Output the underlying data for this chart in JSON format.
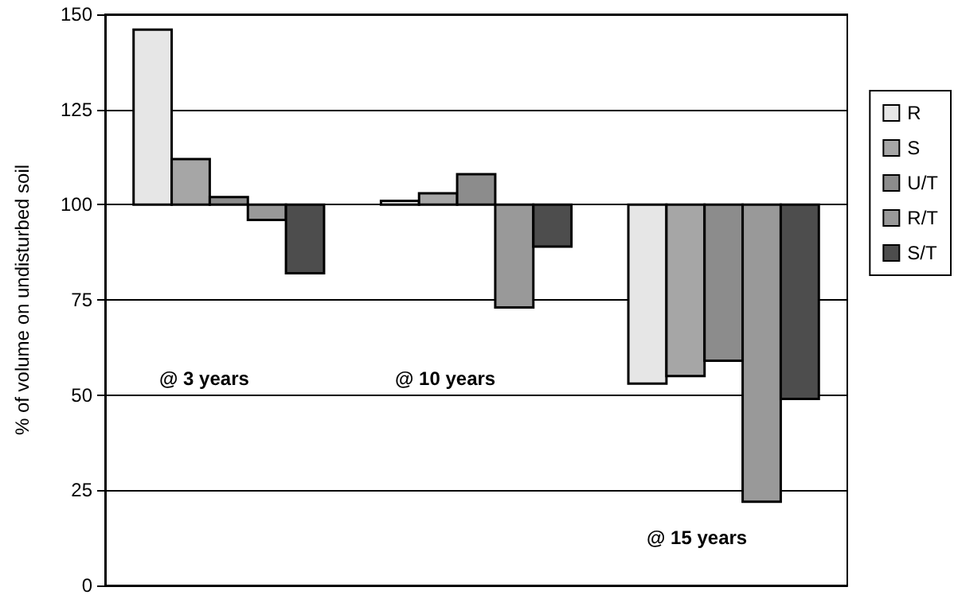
{
  "chart_data": {
    "type": "bar",
    "ylabel": "% of volume on undisturbed soil",
    "categories": [
      null,
      null,
      null
    ],
    "series": [
      {
        "name": "R",
        "color": "#e6e6e6",
        "values": [
          46,
          1,
          -47
        ],
        "base": [
          100,
          100,
          100
        ]
      },
      {
        "name": "S",
        "color": "#a6a6a6",
        "values": [
          12,
          3,
          -45
        ],
        "base": [
          100,
          100,
          100
        ]
      },
      {
        "name": "U/T",
        "color": "#8c8c8c",
        "values": [
          2,
          8,
          -41
        ],
        "base": [
          100,
          100,
          100
        ]
      },
      {
        "name": "R/T",
        "color": "#999999",
        "values": [
          -4,
          -27,
          -78
        ],
        "base": [
          100,
          100,
          100
        ]
      },
      {
        "name": "S/T",
        "color": "#4d4d4d",
        "values": [
          -18,
          -11,
          -51
        ],
        "base": [
          100,
          100,
          100
        ]
      }
    ],
    "annotations": [
      "@ 3 years",
      "@ 10 years",
      "@ 15 years"
    ],
    "ylim": [
      0,
      150
    ],
    "yticks": [
      0,
      25,
      50,
      75,
      100,
      125,
      150
    ],
    "grid": "y",
    "legend": "right",
    "tick_labels": "y"
  }
}
